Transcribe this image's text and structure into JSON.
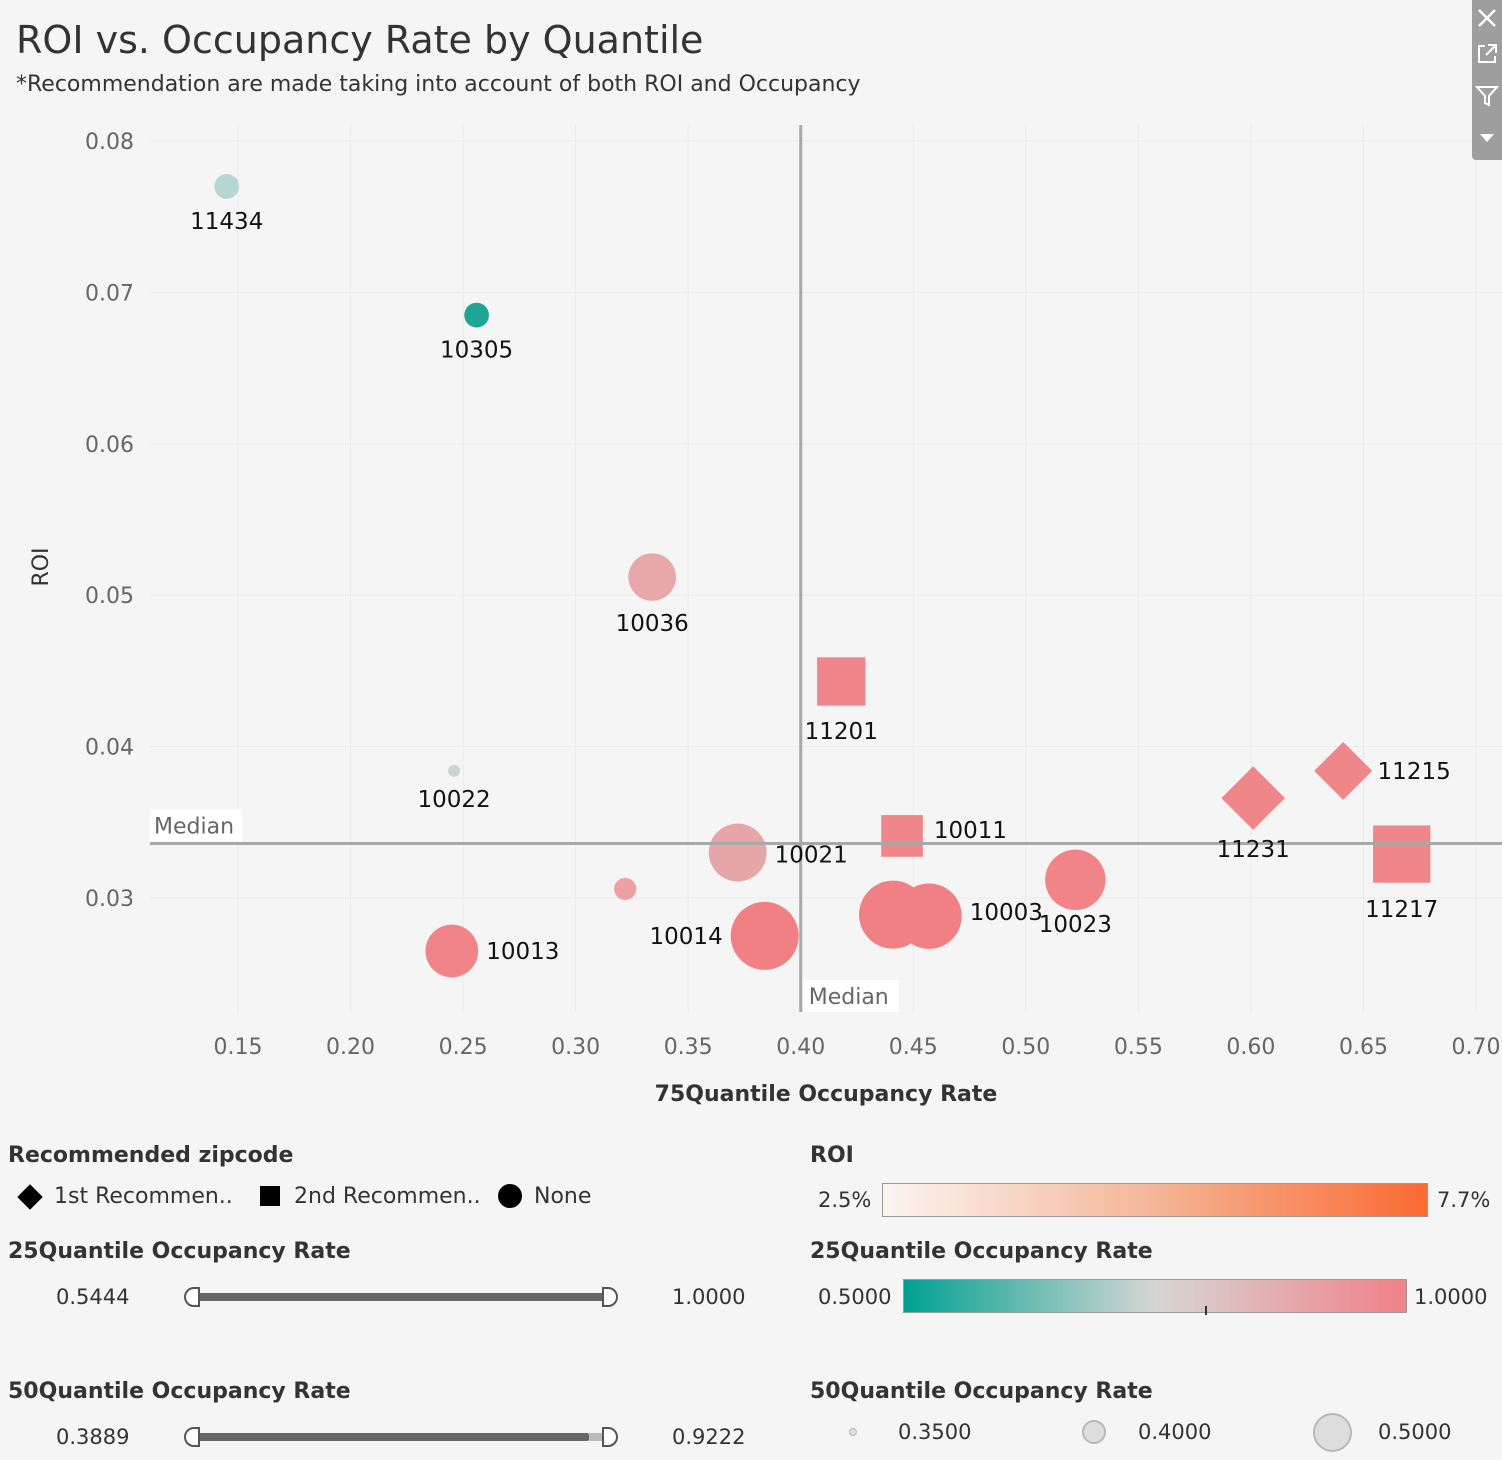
{
  "header": {
    "title": "ROI vs. Occupancy Rate by Quantile",
    "subtitle": "*Recommendation are made taking into account of both ROI and Occupancy"
  },
  "toolbar": {
    "close_icon": "close-icon",
    "popout_icon": "popout-icon",
    "filter_icon": "filter-icon",
    "more_icon": "chevron-down-icon"
  },
  "chart_data": {
    "type": "scatter",
    "xlabel": "75Quantile Occupancy Rate",
    "ylabel": "ROI",
    "xlim": [
      0.11,
      0.7
    ],
    "ylim": [
      0.0223,
      0.0811
    ],
    "xticks": [
      "0.15",
      "0.20",
      "0.25",
      "0.30",
      "0.35",
      "0.40",
      "0.45",
      "0.50",
      "0.55",
      "0.60",
      "0.65",
      "0.70"
    ],
    "yticks": [
      "0.03",
      "0.04",
      "0.05",
      "0.06",
      "0.07",
      "0.08"
    ],
    "grid": true,
    "reference_lines": [
      {
        "axis": "x",
        "value": 0.4,
        "label": "Median"
      },
      {
        "axis": "y",
        "value": 0.0336,
        "label": "Median"
      }
    ],
    "points": [
      {
        "label": "11434",
        "x": 0.145,
        "y": 0.077,
        "shape": "circle",
        "size": 0.36,
        "color": "#b6d6d2"
      },
      {
        "label": "10305",
        "x": 0.256,
        "y": 0.0685,
        "shape": "circle",
        "size": 0.36,
        "color": "#1fa595"
      },
      {
        "label": "10036",
        "x": 0.334,
        "y": 0.0512,
        "shape": "circle",
        "size": 0.45,
        "color": "#e8a8aa"
      },
      {
        "label": "11201",
        "x": 0.418,
        "y": 0.0443,
        "shape": "square",
        "size": 0.48,
        "color": "#ef878a"
      },
      {
        "label": "10022",
        "x": 0.246,
        "y": 0.0384,
        "shape": "circle",
        "size": 0.31,
        "color": "#c9d6d4"
      },
      {
        "label": "10021",
        "x": 0.372,
        "y": 0.033,
        "shape": "circle",
        "size": 0.49,
        "color": "#e6a6a8"
      },
      {
        "label": "10011",
        "x": 0.445,
        "y": 0.0341,
        "shape": "square",
        "size": 0.45,
        "color": "#ef878a"
      },
      {
        "label": "",
        "x": 0.322,
        "y": 0.0306,
        "shape": "circle",
        "size": 0.35,
        "color": "#eea0a2"
      },
      {
        "label": "10013",
        "x": 0.245,
        "y": 0.0265,
        "shape": "circle",
        "size": 0.47,
        "color": "#f08488"
      },
      {
        "label": "10014",
        "x": 0.384,
        "y": 0.0275,
        "shape": "circle",
        "size": 0.53,
        "color": "#f08084"
      },
      {
        "label": "",
        "x": 0.441,
        "y": 0.0289,
        "shape": "circle",
        "size": 0.53,
        "color": "#f08084"
      },
      {
        "label": "10003",
        "x": 0.457,
        "y": 0.0288,
        "shape": "circle",
        "size": 0.52,
        "color": "#f08084"
      },
      {
        "label": "10023",
        "x": 0.522,
        "y": 0.0312,
        "shape": "circle",
        "size": 0.5,
        "color": "#f08488"
      },
      {
        "label": "11231",
        "x": 0.601,
        "y": 0.0366,
        "shape": "diamond",
        "size": 0.49,
        "color": "#ef878a"
      },
      {
        "label": "11215",
        "x": 0.641,
        "y": 0.0384,
        "shape": "diamond",
        "size": 0.47,
        "color": "#ef878a"
      },
      {
        "label": "11217",
        "x": 0.667,
        "y": 0.0329,
        "shape": "square",
        "size": 0.52,
        "color": "#ef878a"
      }
    ]
  },
  "legends": {
    "shape": {
      "title": "Recommended zipcode",
      "items": [
        {
          "label": "1st Recommen..",
          "icon": "diamond-icon"
        },
        {
          "label": "2nd Recommen..",
          "icon": "square-icon"
        },
        {
          "label": "None",
          "icon": "circle-icon"
        }
      ]
    },
    "roi_color": {
      "title": "ROI",
      "min": "2.5%",
      "max": "7.7%",
      "colors": [
        "#fbf5f1",
        "#f4b596",
        "#fb6a33"
      ]
    },
    "q25_color": {
      "title": "25Quantile Occupancy Rate",
      "min": "0.5000",
      "max": "1.0000",
      "colors": [
        "#00a192",
        "#d6d6d4",
        "#f08289"
      ]
    },
    "q50_size": {
      "title": "50Quantile Occupancy Rate",
      "items": [
        "0.3500",
        "0.4000",
        "0.5000"
      ]
    }
  },
  "filters": {
    "q25": {
      "title": "25Quantile Occupancy Rate",
      "min": "0.5444",
      "max": "1.0000",
      "fraction": 1.0
    },
    "q50": {
      "title": "50Quantile Occupancy Rate",
      "min": "0.3889",
      "max": "0.9222",
      "fraction": 0.95
    }
  }
}
